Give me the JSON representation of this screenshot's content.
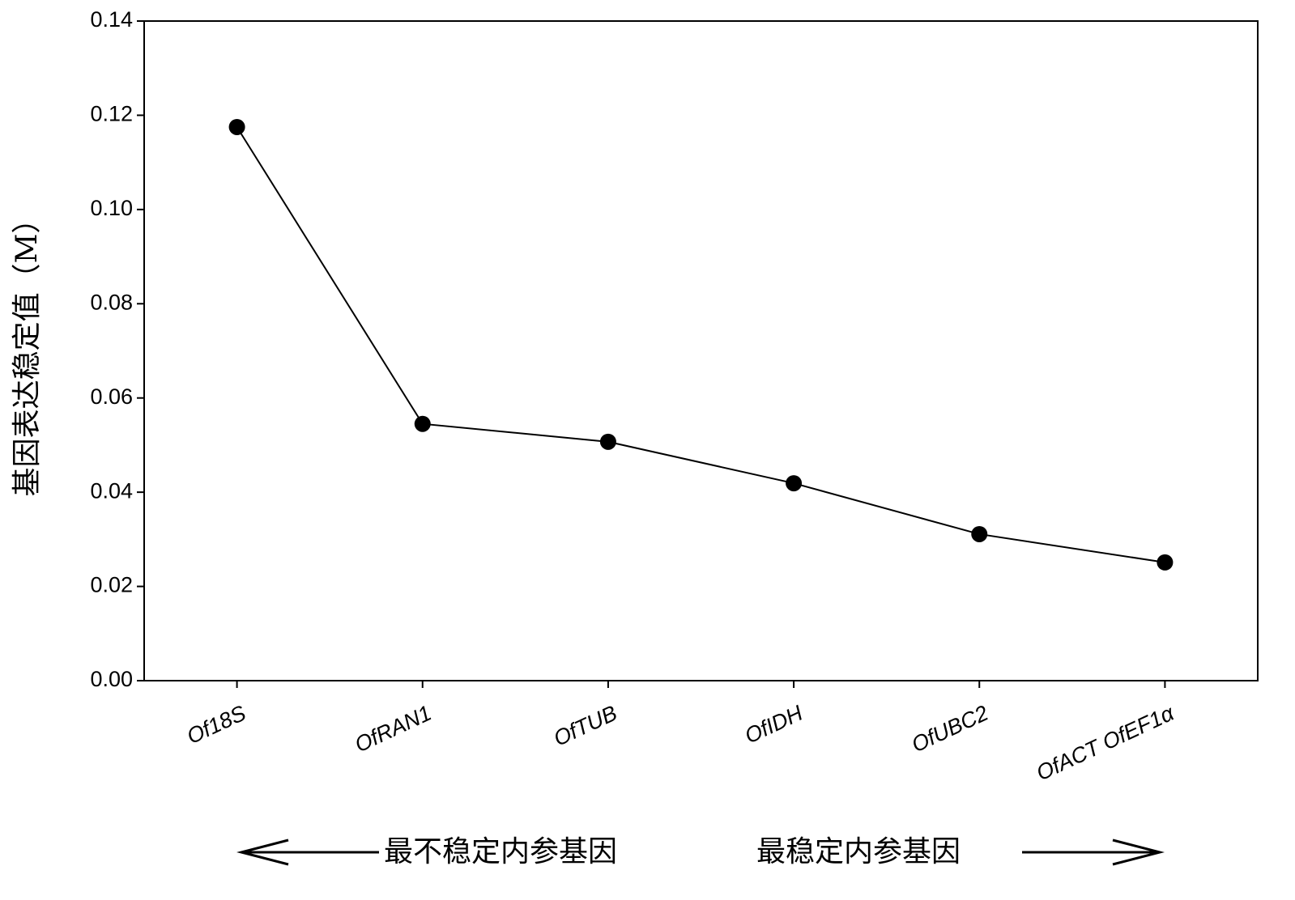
{
  "chart_data": {
    "type": "line",
    "y_label": "基因表达稳定值（M）",
    "categories": [
      "Of18S",
      "OfRAN1",
      "OfTUB",
      "OfIDH",
      "OfUBC2",
      "OfACT OfEF1α"
    ],
    "series": [
      {
        "name": "M",
        "color": "#000000",
        "values": [
          0.1175,
          0.0545,
          0.0507,
          0.0419,
          0.0311,
          0.0251
        ]
      }
    ],
    "ylim": [
      0,
      0.14
    ],
    "yticks": [
      {
        "value": 0,
        "label": "0.00"
      },
      {
        "value": 0.02,
        "label": "0.02"
      },
      {
        "value": 0.04,
        "label": "0.04"
      },
      {
        "value": 0.06,
        "label": "0.06"
      },
      {
        "value": 0.08,
        "label": "0.08"
      },
      {
        "value": 0.1,
        "label": "0.10"
      },
      {
        "value": 0.12,
        "label": "0.12"
      },
      {
        "value": 0.14,
        "label": "0.14"
      }
    ],
    "annotations": [
      "最不稳定内参基因",
      "最稳定内参基因"
    ]
  }
}
